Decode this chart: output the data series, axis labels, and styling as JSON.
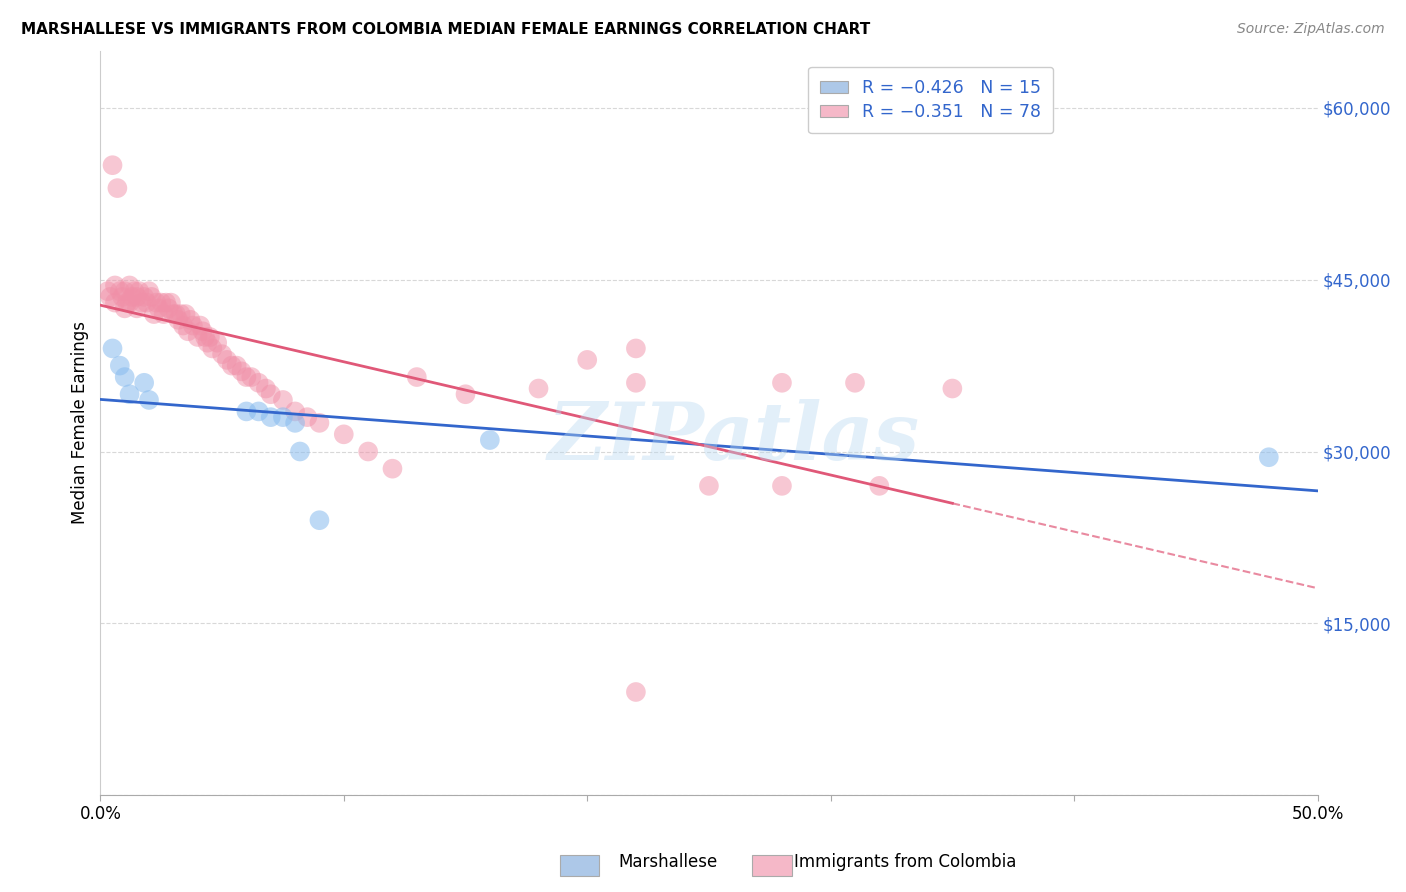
{
  "title": "MARSHALLESE VS IMMIGRANTS FROM COLOMBIA MEDIAN FEMALE EARNINGS CORRELATION CHART",
  "source": "Source: ZipAtlas.com",
  "ylabel": "Median Female Earnings",
  "yticks": [
    0,
    15000,
    30000,
    45000,
    60000
  ],
  "ytick_labels": [
    "",
    "$15,000",
    "$30,000",
    "$45,000",
    "$60,000"
  ],
  "xlim": [
    0.0,
    0.5
  ],
  "ylim": [
    0,
    65000
  ],
  "legend_blue_label": "R = −0.426   N = 15",
  "legend_pink_label": "R = −0.351   N = 78",
  "legend_blue_color": "#adc8e8",
  "legend_pink_color": "#f5b8c8",
  "watermark": "ZIPatlas",
  "blue_scatter_color": "#88bbee",
  "pink_scatter_color": "#f090a8",
  "blue_line_color": "#3366cc",
  "pink_line_color": "#e05878",
  "grid_color": "#d8d8d8",
  "marshallese_x": [
    0.005,
    0.008,
    0.01,
    0.012,
    0.018,
    0.02,
    0.06,
    0.065,
    0.07,
    0.075,
    0.08,
    0.082,
    0.09,
    0.16,
    0.48
  ],
  "marshallese_y": [
    39000,
    37500,
    36500,
    35000,
    36000,
    34500,
    33500,
    33500,
    33000,
    33000,
    32500,
    30000,
    24000,
    31000,
    29500
  ],
  "colombia_x": [
    0.003,
    0.004,
    0.005,
    0.006,
    0.006,
    0.007,
    0.008,
    0.009,
    0.01,
    0.01,
    0.011,
    0.012,
    0.012,
    0.013,
    0.014,
    0.015,
    0.015,
    0.016,
    0.017,
    0.018,
    0.019,
    0.02,
    0.021,
    0.022,
    0.023,
    0.024,
    0.025,
    0.026,
    0.027,
    0.028,
    0.029,
    0.03,
    0.031,
    0.032,
    0.033,
    0.034,
    0.035,
    0.036,
    0.037,
    0.038,
    0.04,
    0.041,
    0.042,
    0.043,
    0.044,
    0.045,
    0.046,
    0.048,
    0.05,
    0.052,
    0.054,
    0.056,
    0.058,
    0.06,
    0.062,
    0.065,
    0.068,
    0.07,
    0.075,
    0.08,
    0.085,
    0.09,
    0.1,
    0.11,
    0.12,
    0.13,
    0.15,
    0.18,
    0.22,
    0.25,
    0.28,
    0.32,
    0.35,
    0.2,
    0.28,
    0.22,
    0.31,
    0.22
  ],
  "colombia_y": [
    44000,
    43500,
    55000,
    44500,
    43000,
    53000,
    44000,
    43500,
    44000,
    42500,
    43000,
    44500,
    43000,
    43500,
    44000,
    43500,
    42500,
    44000,
    43000,
    43500,
    43000,
    44000,
    43500,
    42000,
    43000,
    42500,
    43000,
    42000,
    43000,
    42500,
    43000,
    42000,
    42000,
    41500,
    42000,
    41000,
    42000,
    40500,
    41500,
    41000,
    40000,
    41000,
    40500,
    40000,
    39500,
    40000,
    39000,
    39500,
    38500,
    38000,
    37500,
    37500,
    37000,
    36500,
    36500,
    36000,
    35500,
    35000,
    34500,
    33500,
    33000,
    32500,
    31500,
    30000,
    28500,
    36500,
    35000,
    35500,
    39000,
    27000,
    36000,
    27000,
    35500,
    38000,
    27000,
    36000,
    36000,
    9000
  ]
}
